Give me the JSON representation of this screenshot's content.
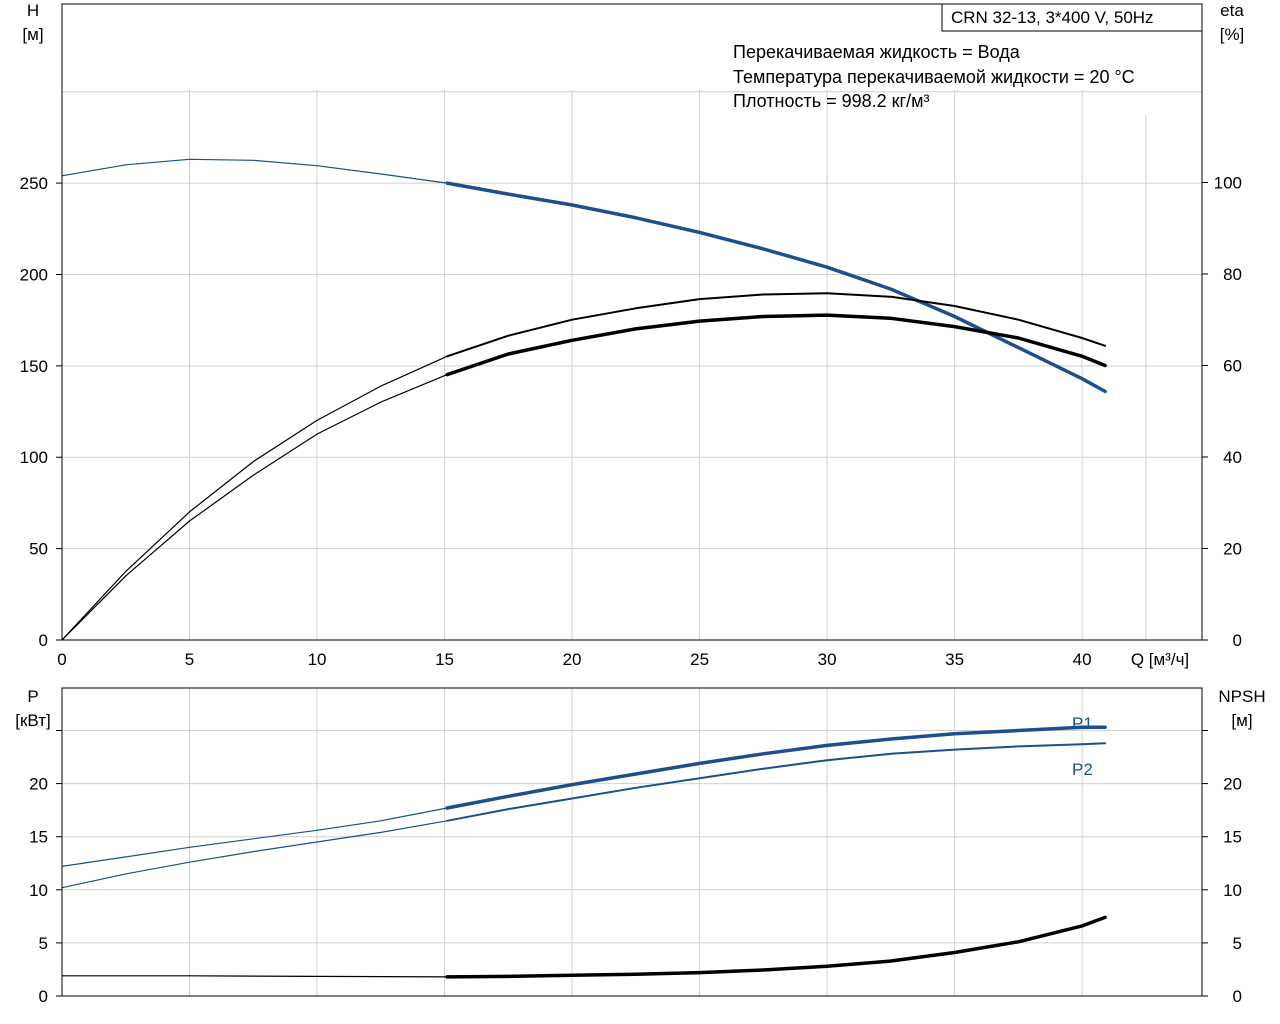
{
  "chart_data": [
    {
      "type": "line",
      "title": "CRN 32-13, 3*400 V, 50Hz",
      "annotations": [
        "Перекачиваемая жидкость = Вода",
        "Температура перекачиваемой жидкости = 20 °C",
        "Плотность = 998.2 кг/м³"
      ],
      "xlabel": "Q [м³/ч]",
      "ylabel_left": [
        "H",
        "[м]"
      ],
      "ylabel_right": [
        "eta",
        "[%]"
      ],
      "xlim": [
        0,
        44.7
      ],
      "ylim_left": [
        0,
        348
      ],
      "ylim_right": [
        0,
        139
      ],
      "x_ticks": [
        0,
        5,
        10,
        15,
        20,
        25,
        30,
        35,
        40
      ],
      "y_ticks_left": [
        0,
        50,
        100,
        150,
        200,
        250
      ],
      "y_ticks_right": [
        0,
        20,
        40,
        60,
        80,
        100
      ],
      "operating_range_start": 15.1,
      "grid": true,
      "series": [
        {
          "axis": "left",
          "color": "#1c4f8c",
          "points": [
            [
              0,
              254
            ],
            [
              2.5,
              260
            ],
            [
              5,
              263
            ],
            [
              7.5,
              262.5
            ],
            [
              10,
              259.5
            ],
            [
              12.5,
              255
            ],
            [
              15.1,
              250
            ],
            [
              17.5,
              244
            ],
            [
              20,
              238
            ],
            [
              22.5,
              231
            ],
            [
              25,
              223
            ],
            [
              27.5,
              214
            ],
            [
              30,
              204
            ],
            [
              32.5,
              192
            ],
            [
              35,
              177
            ],
            [
              37.5,
              160
            ],
            [
              40,
              143
            ],
            [
              40.9,
              136
            ]
          ]
        },
        {
          "axis": "right",
          "color": "#000000",
          "points": [
            [
              0,
              0
            ],
            [
              2.5,
              15
            ],
            [
              5,
              28
            ],
            [
              7.5,
              39
            ],
            [
              10,
              48
            ],
            [
              12.5,
              55.5
            ],
            [
              15.1,
              62
            ],
            [
              17.5,
              66.5
            ],
            [
              20,
              70
            ],
            [
              22.5,
              72.5
            ],
            [
              25,
              74.5
            ],
            [
              27.5,
              75.5
            ],
            [
              30,
              75.8
            ],
            [
              32.5,
              75
            ],
            [
              35,
              73
            ],
            [
              37.5,
              70
            ],
            [
              40,
              66
            ],
            [
              40.9,
              64.3
            ]
          ]
        },
        {
          "axis": "right",
          "color": "#000000",
          "points": [
            [
              0,
              0
            ],
            [
              2.5,
              14
            ],
            [
              5,
              26
            ],
            [
              7.5,
              36
            ],
            [
              10,
              45
            ],
            [
              12.5,
              52
            ],
            [
              15.1,
              58
            ],
            [
              17.5,
              62.5
            ],
            [
              20,
              65.5
            ],
            [
              22.5,
              68
            ],
            [
              25,
              69.7
            ],
            [
              27.5,
              70.7
            ],
            [
              30,
              71
            ],
            [
              32.5,
              70.3
            ],
            [
              35,
              68.5
            ],
            [
              37.5,
              66
            ],
            [
              40,
              62
            ],
            [
              40.9,
              60
            ]
          ]
        }
      ]
    },
    {
      "type": "line",
      "xlabel": "",
      "ylabel_left": [
        "P",
        "[кВт]"
      ],
      "ylabel_right": [
        "NPSH",
        "[м]"
      ],
      "xlim": [
        0,
        44.7
      ],
      "ylim_left": [
        0,
        29
      ],
      "ylim_right": [
        0,
        29
      ],
      "x_ticks": [
        0,
        5,
        10,
        15,
        20,
        25,
        30,
        35,
        40
      ],
      "y_ticks_left": [
        0,
        5,
        10,
        15,
        20
      ],
      "y_ticks_right": [
        0,
        5,
        10,
        15,
        20
      ],
      "operating_range_start": 15.1,
      "grid": true,
      "series": [
        {
          "name": "P1",
          "axis": "left",
          "color": "#1c4f8c",
          "points": [
            [
              0,
              12.2
            ],
            [
              2.5,
              13.1
            ],
            [
              5,
              14.0
            ],
            [
              7.5,
              14.8
            ],
            [
              10,
              15.6
            ],
            [
              12.5,
              16.5
            ],
            [
              15.1,
              17.7
            ],
            [
              17.5,
              18.8
            ],
            [
              20,
              19.9
            ],
            [
              22.5,
              20.9
            ],
            [
              25,
              21.9
            ],
            [
              27.5,
              22.8
            ],
            [
              30,
              23.6
            ],
            [
              32.5,
              24.2
            ],
            [
              35,
              24.7
            ],
            [
              37.5,
              25.0
            ],
            [
              40,
              25.3
            ],
            [
              40.9,
              25.3
            ]
          ]
        },
        {
          "name": "P2",
          "axis": "left",
          "color": "#1c4f8c",
          "points": [
            [
              0,
              10.2
            ],
            [
              2.5,
              11.5
            ],
            [
              5,
              12.6
            ],
            [
              7.5,
              13.6
            ],
            [
              10,
              14.5
            ],
            [
              12.5,
              15.4
            ],
            [
              15.1,
              16.5
            ],
            [
              17.5,
              17.6
            ],
            [
              20,
              18.6
            ],
            [
              22.5,
              19.6
            ],
            [
              25,
              20.5
            ],
            [
              27.5,
              21.4
            ],
            [
              30,
              22.2
            ],
            [
              32.5,
              22.8
            ],
            [
              35,
              23.2
            ],
            [
              37.5,
              23.5
            ],
            [
              40,
              23.7
            ],
            [
              40.9,
              23.8
            ]
          ]
        },
        {
          "name": "NPSH",
          "axis": "right",
          "color": "#000000",
          "points": [
            [
              0,
              1.9
            ],
            [
              5,
              1.9
            ],
            [
              10,
              1.85
            ],
            [
              15.1,
              1.8
            ],
            [
              17.5,
              1.85
            ],
            [
              20,
              1.95
            ],
            [
              22.5,
              2.05
            ],
            [
              25,
              2.2
            ],
            [
              27.5,
              2.45
            ],
            [
              30,
              2.8
            ],
            [
              32.5,
              3.3
            ],
            [
              35,
              4.1
            ],
            [
              37.5,
              5.1
            ],
            [
              40,
              6.6
            ],
            [
              40.9,
              7.4
            ]
          ]
        }
      ]
    }
  ]
}
